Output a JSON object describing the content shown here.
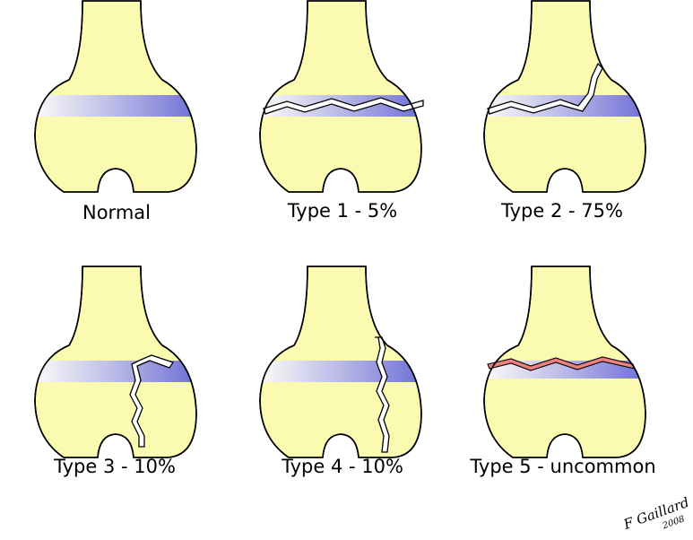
{
  "panels": [
    {
      "label": "Normal"
    },
    {
      "label": "Type 1 - 5%"
    },
    {
      "label": "Type 2 - 75%"
    },
    {
      "label": "Type 3 - 10%"
    },
    {
      "label": "Type 4 - 10%"
    },
    {
      "label": "Type 5 - uncommon"
    }
  ],
  "signature": {
    "name": "F Gaillard",
    "year": "2008"
  },
  "colors": {
    "bone": "#fafab0",
    "growth_plate": "#7070d8",
    "compression": "#f08080"
  }
}
